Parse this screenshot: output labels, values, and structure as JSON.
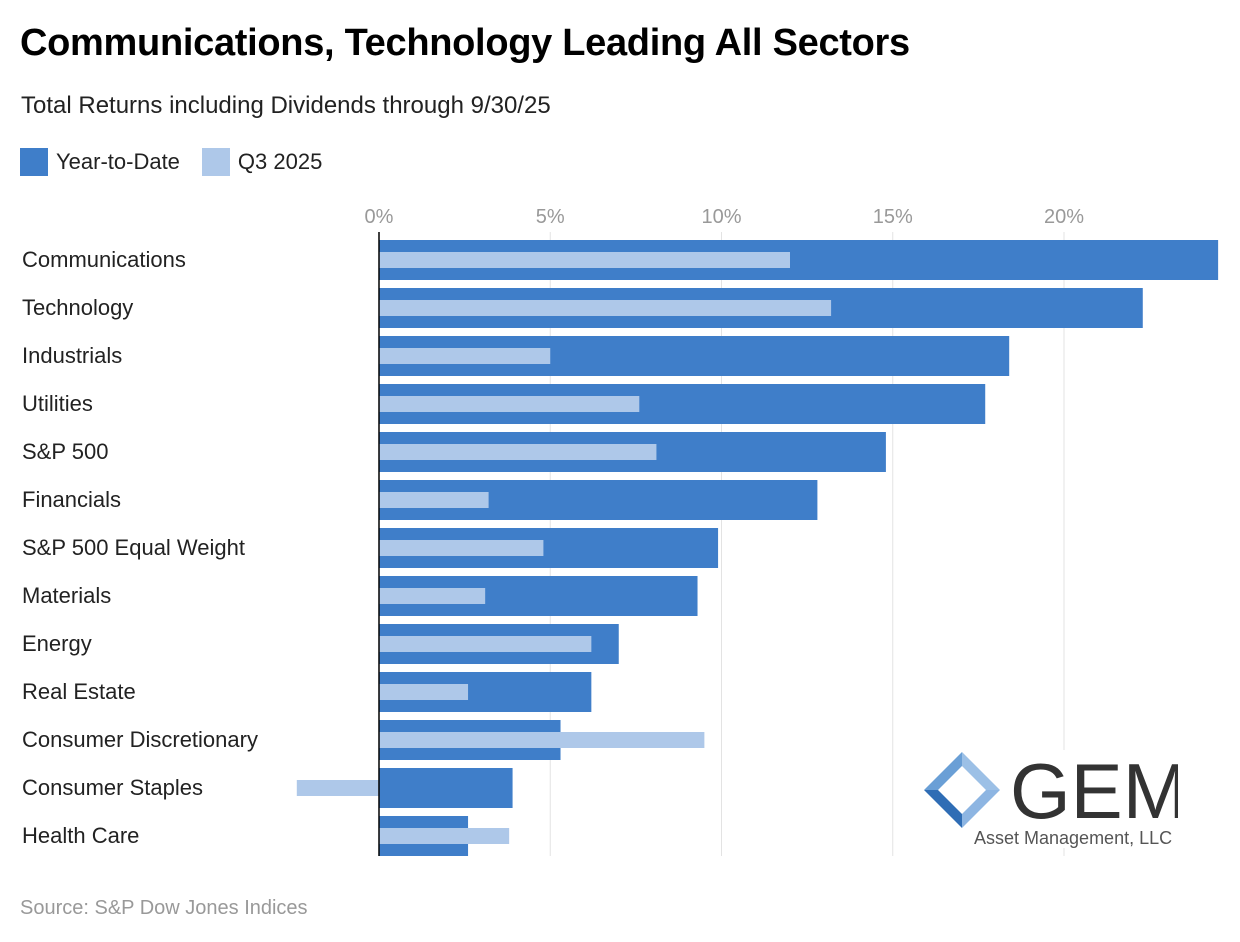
{
  "title": "Communications, Technology Leading All Sectors",
  "subtitle": "Total Returns including Dividends through 9/30/25",
  "source": "Source: S&P Dow Jones Indices",
  "logo": {
    "name": "GEM",
    "tagline": "Asset Management, LLC"
  },
  "colors": {
    "ytd": "#3f7ec9",
    "q3": "#aec8e9",
    "grid": "#e3e3e3",
    "axis": "#000000"
  },
  "chart_data": {
    "type": "bar",
    "orientation": "horizontal",
    "title": "Communications, Technology Leading All Sectors",
    "subtitle": "Total Returns including Dividends through 9/30/25",
    "legend": [
      "Year-to-Date",
      "Q3 2025"
    ],
    "legend_position": "top-left",
    "x_ticks": [
      0,
      5,
      10,
      15,
      20
    ],
    "x_tick_labels": [
      "0%",
      "5%",
      "10%",
      "15%",
      "20%"
    ],
    "xlim": [
      -2.5,
      24.5
    ],
    "grid": true,
    "categories": [
      "Communications",
      "Technology",
      "Industrials",
      "Utilities",
      "S&P 500",
      "Financials",
      "S&P 500 Equal Weight",
      "Materials",
      "Energy",
      "Real Estate",
      "Consumer Discretionary",
      "Consumer Staples",
      "Health Care"
    ],
    "series": [
      {
        "name": "Year-to-Date",
        "values": [
          24.5,
          22.3,
          18.4,
          17.7,
          14.8,
          12.8,
          9.9,
          9.3,
          7.0,
          6.2,
          5.3,
          3.9,
          2.6
        ]
      },
      {
        "name": "Q3 2025",
        "values": [
          12.0,
          13.2,
          5.0,
          7.6,
          8.1,
          3.2,
          4.8,
          3.1,
          6.2,
          2.6,
          9.5,
          -2.4,
          3.8
        ]
      }
    ]
  }
}
